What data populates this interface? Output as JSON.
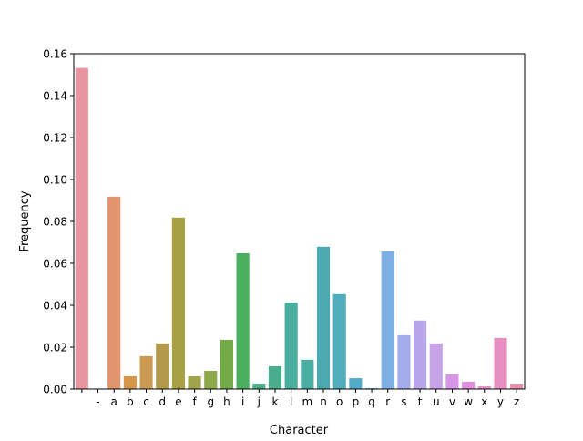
{
  "chart_data": {
    "type": "bar",
    "title": "",
    "xlabel": "Character",
    "ylabel": "Frequency",
    "ylim": [
      0,
      0.16
    ],
    "yticks": [
      "0.00",
      "0.02",
      "0.04",
      "0.06",
      "0.08",
      "0.10",
      "0.12",
      "0.14",
      "0.16"
    ],
    "ytick_values": [
      0,
      0.02,
      0.04,
      0.06,
      0.08,
      0.1,
      0.12,
      0.14,
      0.16
    ],
    "grid": false,
    "categories": [
      " ",
      "-",
      "a",
      "b",
      "c",
      "d",
      "e",
      "f",
      "g",
      "h",
      "i",
      "j",
      "k",
      "l",
      "m",
      "n",
      "o",
      "p",
      "q",
      "r",
      "s",
      "t",
      "u",
      "v",
      "w",
      "x",
      "y",
      "z"
    ],
    "values": [
      0.1532,
      0.0,
      0.0918,
      0.0061,
      0.0157,
      0.0218,
      0.0818,
      0.0061,
      0.0087,
      0.0235,
      0.0648,
      0.0026,
      0.0109,
      0.0413,
      0.014,
      0.0679,
      0.0453,
      0.0052,
      0.0004,
      0.0657,
      0.0257,
      0.0327,
      0.0218,
      0.007,
      0.0035,
      0.0013,
      0.0244,
      0.0026
    ],
    "colors": [
      "#e8959f",
      "#e79a8a",
      "#e2946c",
      "#d5964a",
      "#c99a51",
      "#b49b4c",
      "#a7a044",
      "#a0a44c",
      "#8ea84d",
      "#72aa48",
      "#4aaf5f",
      "#4cb086",
      "#4aad8d",
      "#4aaf9e",
      "#4aaea3",
      "#4baab0",
      "#50adbc",
      "#52acc9",
      "#4fa6d6",
      "#7eb0e6",
      "#a2aceb",
      "#b8a6eb",
      "#c8a2e6",
      "#d796e8",
      "#e48ee0",
      "#e58fc9",
      "#e78fc1",
      "#e890ae"
    ]
  }
}
